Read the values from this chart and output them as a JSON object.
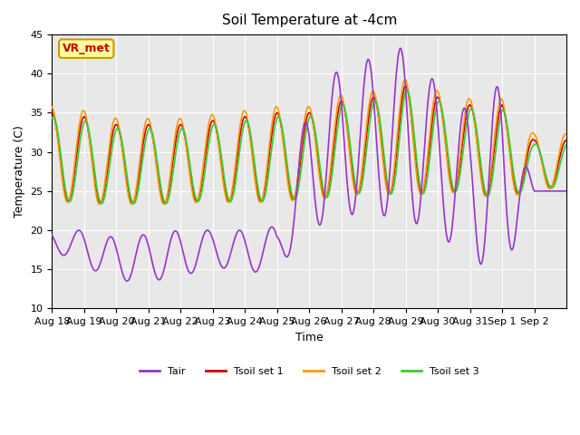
{
  "title": "Soil Temperature at -4cm",
  "xlabel": "Time",
  "ylabel": "Temperature (C)",
  "ylim": [
    10,
    45
  ],
  "xlim_days": [
    0,
    16
  ],
  "x_tick_labels": [
    "Aug 18",
    "Aug 19",
    "Aug 20",
    "Aug 21",
    "Aug 22",
    "Aug 23",
    "Aug 24",
    "Aug 25",
    "Aug 26",
    "Aug 27",
    "Aug 28",
    "Aug 29",
    "Aug 30",
    "Aug 31",
    "Sep 1",
    "Sep 2"
  ],
  "yticks": [
    10,
    15,
    20,
    25,
    30,
    35,
    40,
    45
  ],
  "colors": {
    "Tair": "#9933cc",
    "Tsoil1": "#cc0000",
    "Tsoil2": "#ff9900",
    "Tsoil3": "#33cc33"
  },
  "bg_inner": "#e8e8e8",
  "bg_outer": "#ffffff",
  "annotation_text": "VR_met",
  "annotation_bg": "#ffff99",
  "annotation_border": "#cc9900",
  "annotation_text_color": "#cc0000",
  "grid_color": "#ffffff",
  "legend_labels": [
    "Tair",
    "Tsoil set 1",
    "Tsoil set 2",
    "Tsoil set 3"
  ]
}
